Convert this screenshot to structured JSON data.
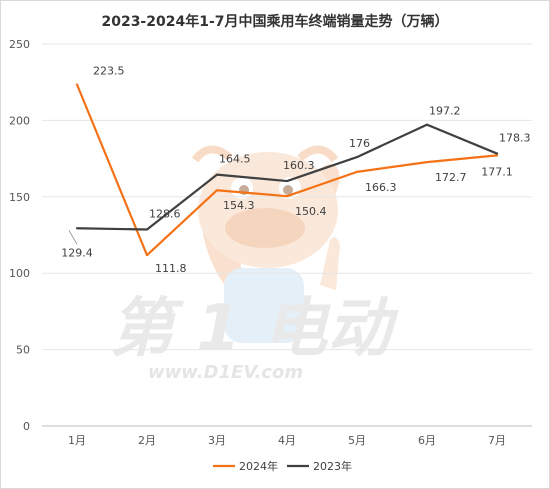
{
  "chart_data": {
    "type": "line",
    "title": "2023-2024年1-7月中国乘用车终端销量走势（万辆）",
    "categories": [
      "1月",
      "2月",
      "3月",
      "4月",
      "5月",
      "6月",
      "7月"
    ],
    "series": [
      {
        "name": "2024年",
        "color": "#f47216",
        "values": [
          223.5,
          111.8,
          154.3,
          150.4,
          166.3,
          172.7,
          177.1
        ]
      },
      {
        "name": "2023年",
        "color": "#404040",
        "values": [
          129.4,
          128.6,
          164.5,
          160.3,
          176,
          197.2,
          178.3
        ]
      }
    ],
    "ylim": [
      0,
      250
    ],
    "yticks": [
      0,
      50,
      100,
      150,
      200,
      250
    ],
    "grid": true,
    "legend_position": "bottom-center"
  },
  "watermark": {
    "brand_text": "第 1 电动",
    "url_text": "www.D1EV.com"
  }
}
